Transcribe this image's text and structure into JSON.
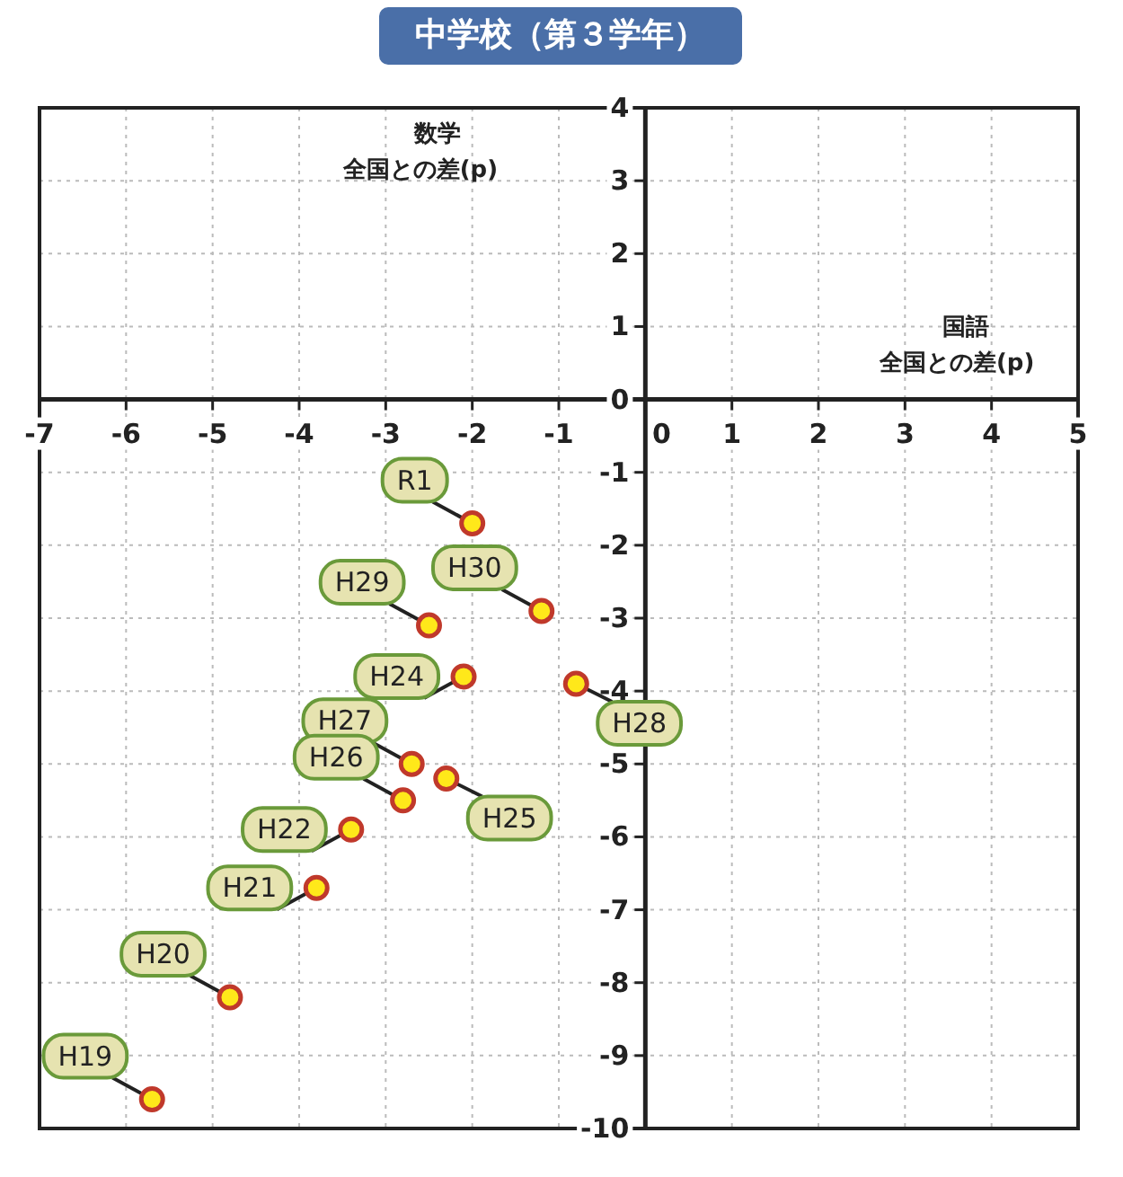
{
  "chart_data": {
    "type": "scatter",
    "title": "中学校（第３学年）",
    "xlabel": "国語",
    "ylabel": "数学",
    "annotations": [
      "全国との差(p)",
      "全国との差(p)"
    ],
    "xlim": [
      -7,
      5
    ],
    "ylim": [
      -10,
      4
    ],
    "xticks": [
      -7,
      -6,
      -5,
      -4,
      -3,
      -2,
      -1,
      0,
      1,
      2,
      3,
      4,
      5
    ],
    "yticks": [
      -10,
      -9,
      -8,
      -7,
      -6,
      -5,
      -4,
      -3,
      -2,
      -1,
      0,
      1,
      2,
      3,
      4
    ],
    "grid": true,
    "marker": "circle",
    "series": [
      {
        "name": "R1",
        "color": "#ffe81a",
        "x": [
          -2.0
        ],
        "values": [
          -1.7
        ]
      },
      {
        "name": "H30",
        "color": "#ffe81a",
        "x": [
          -1.2
        ],
        "values": [
          -2.9
        ]
      },
      {
        "name": "H29",
        "color": "#ffe81a",
        "x": [
          -2.5
        ],
        "values": [
          -3.1
        ]
      },
      {
        "name": "H24",
        "color": "#ffe81a",
        "x": [
          -2.1
        ],
        "values": [
          -3.8
        ]
      },
      {
        "name": "H28",
        "color": "#ffe81a",
        "x": [
          -0.8
        ],
        "values": [
          -3.9
        ]
      },
      {
        "name": "H27",
        "color": "#ffe81a",
        "x": [
          -2.7
        ],
        "values": [
          -5.0
        ]
      },
      {
        "name": "H25",
        "color": "#ffe81a",
        "x": [
          -2.3
        ],
        "values": [
          -5.2
        ]
      },
      {
        "name": "H26",
        "color": "#ffe81a",
        "x": [
          -2.8
        ],
        "values": [
          -5.5
        ]
      },
      {
        "name": "H22",
        "color": "#ffe81a",
        "x": [
          -3.4
        ],
        "values": [
          -5.9
        ]
      },
      {
        "name": "H21",
        "color": "#ffe81a",
        "x": [
          -3.8
        ],
        "values": [
          -6.7
        ]
      },
      {
        "name": "H20",
        "color": "#ffe81a",
        "x": [
          -4.8
        ],
        "values": [
          -8.2
        ]
      },
      {
        "name": "H19",
        "color": "#ffe81a",
        "x": [
          -5.7
        ],
        "values": [
          -9.6
        ]
      }
    ]
  }
}
